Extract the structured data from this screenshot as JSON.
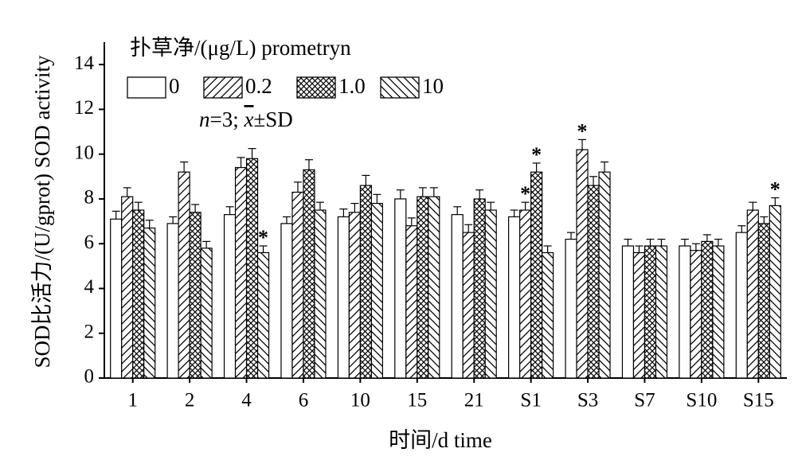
{
  "chart_data": {
    "type": "bar",
    "legend_title": "扑草净/(μg/L) prometryn",
    "stats_prefix": "n",
    "stats_mid": "=3; ",
    "stats_xbar": "x",
    "stats_suffix": "±SD",
    "xlabel": "时间/d time",
    "ylabel": "SOD比活力/(U/gprot) SOD activity",
    "ylim": [
      0,
      15
    ],
    "yticks": [
      0,
      2,
      4,
      6,
      8,
      10,
      12,
      14
    ],
    "categories": [
      "1",
      "2",
      "4",
      "6",
      "10",
      "15",
      "21",
      "S1",
      "S3",
      "S7",
      "S10",
      "S15"
    ],
    "series": [
      {
        "name": "0",
        "pattern": "blank",
        "values": [
          7.1,
          6.9,
          7.3,
          6.9,
          7.2,
          8.0,
          7.3,
          7.2,
          6.2,
          5.9,
          5.9,
          6.5
        ],
        "errors": [
          0.35,
          0.3,
          0.35,
          0.3,
          0.35,
          0.4,
          0.35,
          0.3,
          0.3,
          0.3,
          0.3,
          0.3
        ],
        "marks": [
          false,
          false,
          false,
          false,
          false,
          false,
          false,
          false,
          false,
          false,
          false,
          false
        ]
      },
      {
        "name": "0.2",
        "pattern": "forward-hatch",
        "values": [
          8.1,
          9.2,
          9.4,
          8.3,
          7.4,
          6.8,
          6.5,
          7.5,
          10.2,
          5.6,
          5.7,
          7.5
        ],
        "errors": [
          0.4,
          0.45,
          0.45,
          0.45,
          0.4,
          0.35,
          0.35,
          0.35,
          0.45,
          0.3,
          0.3,
          0.35
        ],
        "marks": [
          false,
          false,
          false,
          false,
          false,
          false,
          false,
          true,
          true,
          false,
          false,
          false
        ]
      },
      {
        "name": "1.0",
        "pattern": "crosshatch",
        "values": [
          7.5,
          7.4,
          9.8,
          9.3,
          8.6,
          8.1,
          8.0,
          9.2,
          8.6,
          5.9,
          6.1,
          6.9
        ],
        "errors": [
          0.35,
          0.35,
          0.45,
          0.45,
          0.45,
          0.4,
          0.4,
          0.4,
          0.4,
          0.3,
          0.3,
          0.3
        ],
        "marks": [
          false,
          false,
          false,
          false,
          false,
          false,
          false,
          true,
          false,
          false,
          false,
          false
        ]
      },
      {
        "name": "10",
        "pattern": "back-hatch",
        "values": [
          6.7,
          5.8,
          5.6,
          7.5,
          7.8,
          8.1,
          7.5,
          5.6,
          9.2,
          5.9,
          5.9,
          7.7
        ],
        "errors": [
          0.35,
          0.3,
          0.3,
          0.35,
          0.4,
          0.4,
          0.35,
          0.3,
          0.45,
          0.3,
          0.3,
          0.35
        ],
        "marks": [
          false,
          false,
          true,
          false,
          false,
          false,
          false,
          false,
          false,
          false,
          false,
          true
        ]
      }
    ],
    "significance_symbol": "*"
  }
}
